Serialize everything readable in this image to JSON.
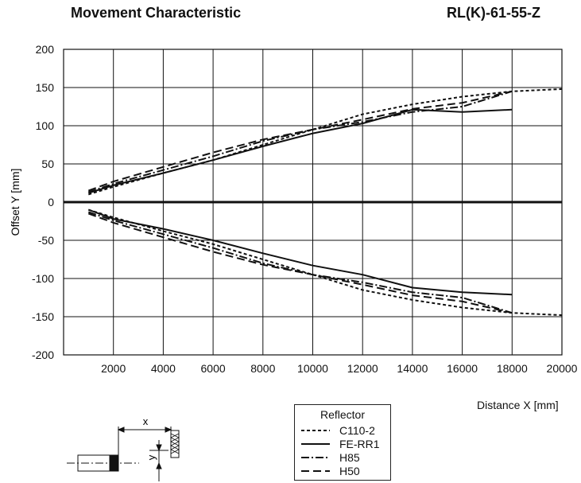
{
  "header": {
    "title": "Movement Characteristic",
    "model": "RL(K)-61-55-Z"
  },
  "chart_data": {
    "type": "line",
    "title": "Movement Characteristic",
    "xlabel": "Distance X [mm]",
    "ylabel": "Offset Y [mm]",
    "xlim": [
      0,
      20000
    ],
    "ylim": [
      -200,
      200
    ],
    "xticks": [
      2000,
      4000,
      6000,
      8000,
      10000,
      12000,
      14000,
      16000,
      18000,
      20000
    ],
    "yticks": [
      200,
      150,
      100,
      50,
      0,
      -50,
      -100,
      -150,
      -200
    ],
    "grid": true,
    "legend_title": "Reflector",
    "legend_position": "bottom-center",
    "series": [
      {
        "name": "C110-2",
        "style": "dotted",
        "x": [
          1000,
          2000,
          4000,
          6000,
          8000,
          10000,
          12000,
          14000,
          16000,
          18000,
          20000
        ],
        "y": [
          10,
          20,
          38,
          55,
          75,
          95,
          115,
          128,
          138,
          145,
          148
        ],
        "y_lower": [
          -10,
          -20,
          -38,
          -55,
          -75,
          -95,
          -115,
          -128,
          -138,
          -145,
          -148
        ]
      },
      {
        "name": "FE-RR1",
        "style": "solid",
        "x": [
          1000,
          2000,
          4000,
          6000,
          8000,
          10000,
          12000,
          14000,
          16000,
          18000
        ],
        "y": [
          12,
          22,
          38,
          55,
          73,
          90,
          103,
          121,
          118,
          121
        ],
        "y_lower": [
          -10,
          -22,
          -35,
          -50,
          -67,
          -83,
          -95,
          -112,
          -118,
          -121
        ]
      },
      {
        "name": "H85",
        "style": "dash-dot",
        "x": [
          1000,
          2000,
          4000,
          6000,
          8000,
          10000,
          12000,
          14000,
          16000,
          18000
        ],
        "y": [
          13,
          24,
          42,
          60,
          80,
          95,
          105,
          118,
          125,
          145
        ],
        "y_lower": [
          -13,
          -24,
          -42,
          -60,
          -80,
          -95,
          -105,
          -118,
          -125,
          -145
        ]
      },
      {
        "name": "H50",
        "style": "dashed",
        "x": [
          1000,
          2000,
          4000,
          6000,
          8000,
          10000,
          12000,
          14000,
          16000,
          18000
        ],
        "y": [
          15,
          27,
          46,
          65,
          82,
          95,
          108,
          122,
          130,
          145
        ],
        "y_lower": [
          -15,
          -27,
          -46,
          -65,
          -82,
          -95,
          -108,
          -122,
          -130,
          -145
        ]
      }
    ]
  },
  "diagram": {
    "x_marker": "x",
    "y_marker": "y"
  }
}
